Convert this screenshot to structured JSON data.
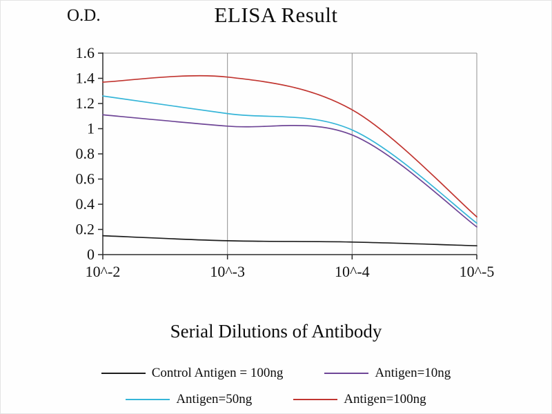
{
  "chart_data": {
    "type": "line",
    "title": "ELISA Result",
    "ylabel": "O.D.",
    "xlabel": "Serial Dilutions of Antibody",
    "x_ticks": [
      "10^-2",
      "10^-3",
      "10^-4",
      "10^-5"
    ],
    "y_ticks": [
      "0",
      "0.2",
      "0.4",
      "0.6",
      "0.8",
      "1",
      "1.2",
      "1.4",
      "1.6"
    ],
    "ylim": [
      0,
      1.6
    ],
    "grid": "vertical gridlines at x ticks, boxed plot area",
    "legend_position": "bottom",
    "series": [
      {
        "name": "Control Antigen = 100ng",
        "color": "#1c1c1c",
        "values": [
          0.15,
          0.11,
          0.1,
          0.07
        ]
      },
      {
        "name": "Antigen=10ng",
        "color": "#6e4596",
        "values": [
          1.11,
          1.02,
          0.95,
          0.22
        ]
      },
      {
        "name": "Antigen=50ng",
        "color": "#35b5d8",
        "values": [
          1.26,
          1.12,
          0.99,
          0.25
        ]
      },
      {
        "name": "Antigen=100ng",
        "color": "#c13530",
        "values": [
          1.37,
          1.41,
          1.15,
          0.3
        ]
      }
    ]
  }
}
